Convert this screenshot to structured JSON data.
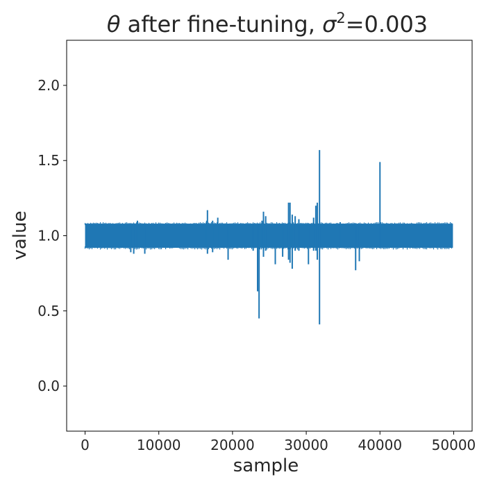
{
  "chart_data": {
    "type": "line",
    "title_parts": {
      "symbol": "θ",
      "text": " after fine-tuning, ",
      "sigma": "σ",
      "exponent": "2",
      "value": "=0.003"
    },
    "xlabel": "sample",
    "ylabel": "value",
    "xlim": [
      -2500,
      52500
    ],
    "ylim": [
      -0.3,
      2.3
    ],
    "x_ticks": [
      0,
      10000,
      20000,
      30000,
      40000,
      50000
    ],
    "x_tick_labels": [
      "0",
      "10000",
      "20000",
      "30000",
      "40000",
      "50000"
    ],
    "y_ticks": [
      0.0,
      0.5,
      1.0,
      1.5,
      2.0
    ],
    "y_tick_labels": [
      "0.0",
      "0.5",
      "1.0",
      "1.5",
      "2.0"
    ],
    "grid": false,
    "series": [
      {
        "color": "#1f77b4",
        "n_samples": 50000,
        "band": {
          "x_range": [
            0,
            49900
          ],
          "min": 0.92,
          "max": 1.08
        },
        "spikes": [
          {
            "x": 6200,
            "min": 0.89,
            "max": 1.08
          },
          {
            "x": 6600,
            "min": 0.88,
            "max": 1.08
          },
          {
            "x": 7100,
            "min": 0.92,
            "max": 1.1
          },
          {
            "x": 8100,
            "min": 0.88,
            "max": 1.08
          },
          {
            "x": 16500,
            "min": 0.92,
            "max": 1.1
          },
          {
            "x": 16600,
            "min": 0.88,
            "max": 1.17
          },
          {
            "x": 17300,
            "min": 0.89,
            "max": 1.1
          },
          {
            "x": 18000,
            "min": 0.92,
            "max": 1.12
          },
          {
            "x": 19400,
            "min": 0.84,
            "max": 1.08
          },
          {
            "x": 22800,
            "min": 0.9,
            "max": 1.08
          },
          {
            "x": 23400,
            "min": 0.63,
            "max": 1.08
          },
          {
            "x": 23600,
            "min": 0.45,
            "max": 1.08
          },
          {
            "x": 24000,
            "min": 0.92,
            "max": 1.1
          },
          {
            "x": 24200,
            "min": 0.86,
            "max": 1.16
          },
          {
            "x": 24500,
            "min": 0.9,
            "max": 1.13
          },
          {
            "x": 25800,
            "min": 0.81,
            "max": 1.08
          },
          {
            "x": 26800,
            "min": 0.86,
            "max": 1.08
          },
          {
            "x": 27600,
            "min": 0.84,
            "max": 1.22
          },
          {
            "x": 27800,
            "min": 0.82,
            "max": 1.22
          },
          {
            "x": 28100,
            "min": 0.78,
            "max": 1.14
          },
          {
            "x": 28500,
            "min": 0.9,
            "max": 1.13
          },
          {
            "x": 29000,
            "min": 0.9,
            "max": 1.11
          },
          {
            "x": 30300,
            "min": 0.81,
            "max": 1.08
          },
          {
            "x": 31000,
            "min": 0.9,
            "max": 1.12
          },
          {
            "x": 31300,
            "min": 0.9,
            "max": 1.2
          },
          {
            "x": 31500,
            "min": 0.84,
            "max": 1.22
          },
          {
            "x": 31800,
            "min": 0.41,
            "max": 1.57
          },
          {
            "x": 34600,
            "min": 0.92,
            "max": 1.09
          },
          {
            "x": 36700,
            "min": 0.77,
            "max": 1.08
          },
          {
            "x": 37200,
            "min": 0.83,
            "max": 1.08
          },
          {
            "x": 40000,
            "min": 0.92,
            "max": 1.49
          }
        ]
      }
    ]
  }
}
